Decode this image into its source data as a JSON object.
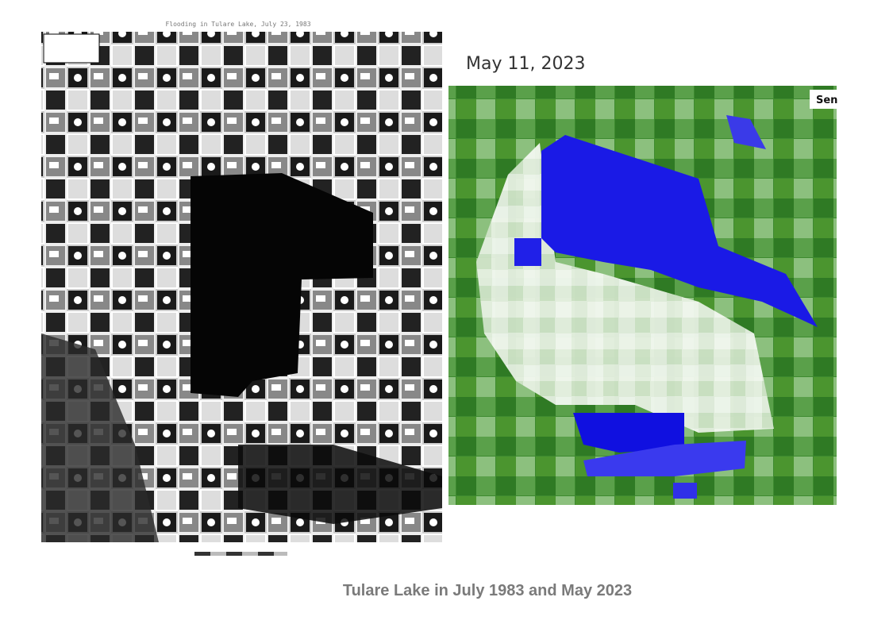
{
  "left_image": {
    "title": "Flooding in Tulare Lake, July 23, 1983"
  },
  "right_image": {
    "date": "May 11, 2023",
    "label": "Sen"
  },
  "caption": "Tulare Lake in July 1983 and May 2023"
}
